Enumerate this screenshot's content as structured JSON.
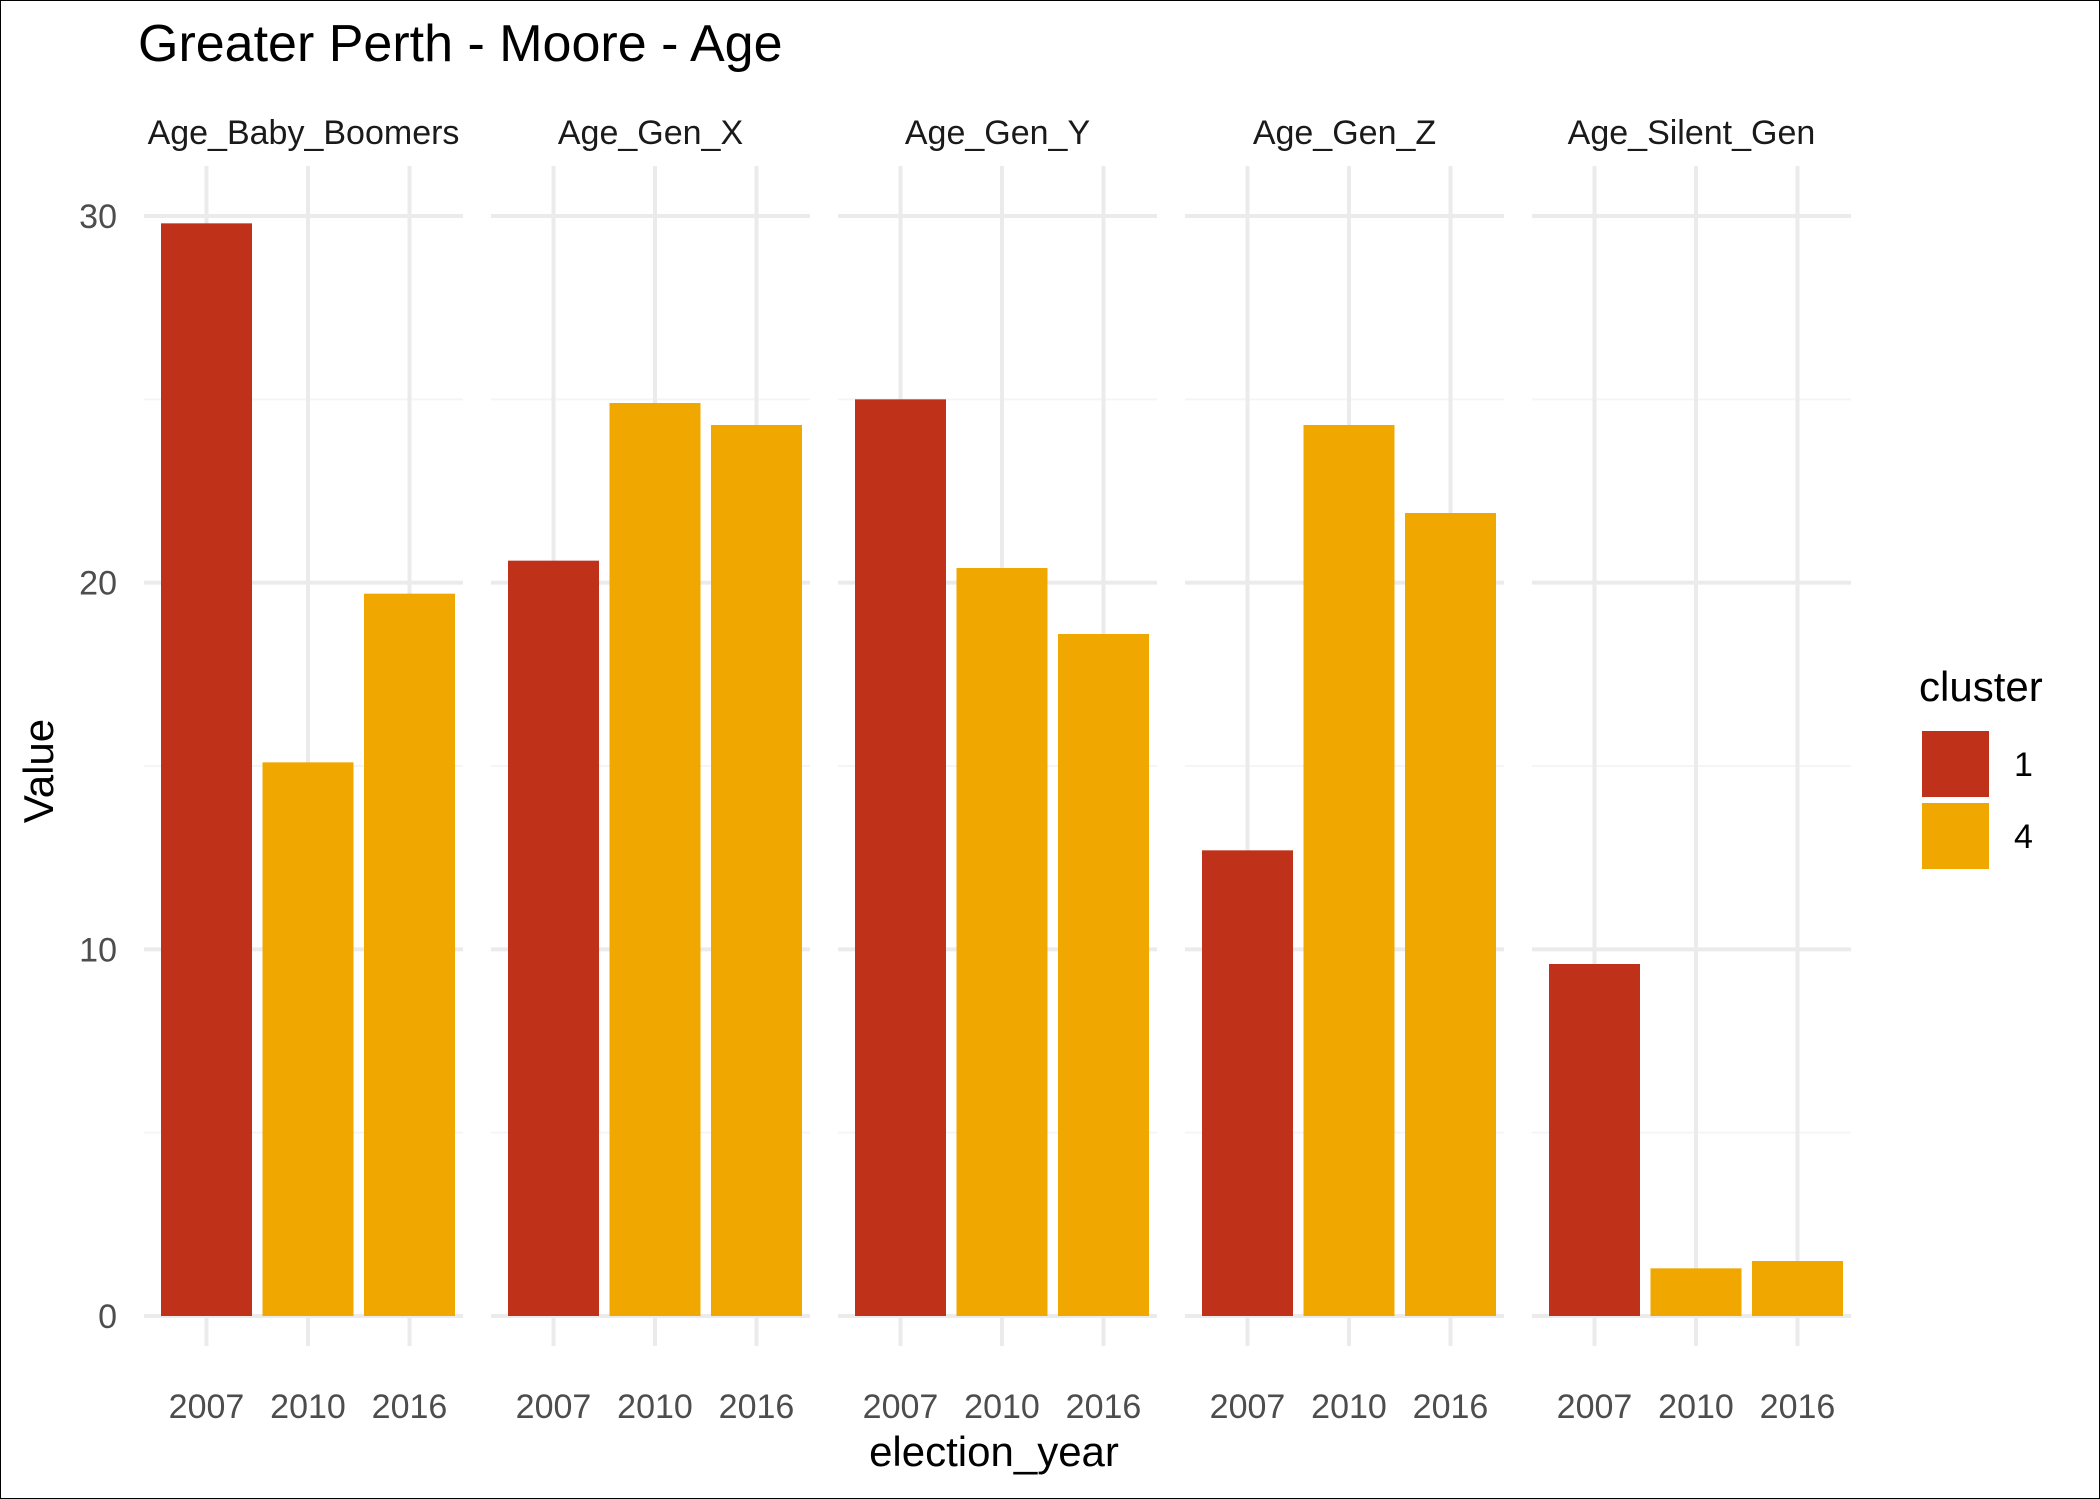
{
  "chart_data": {
    "type": "bar",
    "title": "Greater Perth - Moore - Age",
    "xlabel": "election_year",
    "ylabel": "Value",
    "ylim": [
      0,
      31
    ],
    "yticks": [
      0,
      10,
      20,
      30
    ],
    "categories": [
      "2007",
      "2010",
      "2016"
    ],
    "facets": [
      {
        "name": "Age_Baby_Boomers",
        "strip_label": "Age_Baby_Boomers",
        "values": [
          29.8,
          15.1,
          19.7
        ],
        "clusters": [
          "1",
          "4",
          "4"
        ]
      },
      {
        "name": "Age_Gen_X",
        "strip_label": "Age_Gen_X",
        "values": [
          20.6,
          24.9,
          24.3
        ],
        "clusters": [
          "1",
          "4",
          "4"
        ]
      },
      {
        "name": "Age_Gen_Y",
        "strip_label": "Age_Gen_Y",
        "values": [
          25.0,
          20.4,
          18.6
        ],
        "clusters": [
          "1",
          "4",
          "4"
        ]
      },
      {
        "name": "Age_Gen_Z",
        "strip_label": "Age_Gen_Z",
        "values": [
          12.7,
          24.3,
          21.9
        ],
        "clusters": [
          "1",
          "4",
          "4"
        ]
      },
      {
        "name": "Age_Silent_Gen",
        "strip_label": "Age_Silent_Gen",
        "values": [
          9.6,
          1.3,
          1.5
        ],
        "clusters": [
          "1",
          "4",
          "4"
        ]
      }
    ],
    "legend": {
      "title": "cluster",
      "position": "right",
      "entries": [
        {
          "label": "1",
          "color": "#C0311A"
        },
        {
          "label": "4",
          "color": "#F0A800"
        }
      ]
    },
    "grid": true
  },
  "colors": {
    "cluster_1": "#C0311A",
    "cluster_4": "#F0A800",
    "grid_major": "#EBEBEB",
    "grid_minor": "#F5F5F5"
  }
}
